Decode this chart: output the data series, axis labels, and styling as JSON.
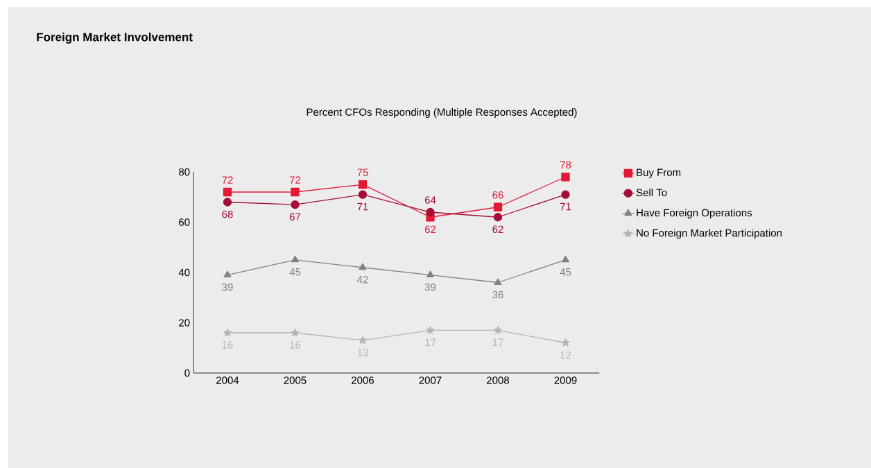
{
  "chart_data": {
    "type": "line",
    "title": "Foreign Market Involvement",
    "subtitle": "Percent CFOs Responding (Multiple Responses Accepted)",
    "categories": [
      "2004",
      "2005",
      "2006",
      "2007",
      "2008",
      "2009"
    ],
    "series": [
      {
        "name": "Buy From",
        "color": "#e31837",
        "marker": "square",
        "values": [
          72,
          72,
          75,
          62,
          66,
          78
        ]
      },
      {
        "name": "Sell To",
        "color": "#a50d34",
        "marker": "circle",
        "values": [
          68,
          67,
          71,
          64,
          62,
          71
        ]
      },
      {
        "name": "Have Foreign Operations",
        "color": "#808285",
        "marker": "triangle",
        "values": [
          39,
          45,
          42,
          39,
          36,
          45
        ]
      },
      {
        "name": "No Foreign Market Participation",
        "color": "#b5b5b7",
        "marker": "star",
        "values": [
          16,
          16,
          13,
          17,
          17,
          12
        ]
      }
    ],
    "ylim": [
      0,
      80
    ],
    "yticks": [
      0,
      20,
      40,
      60,
      80
    ],
    "data_labels": true,
    "legend": "right",
    "line_style": "solid"
  }
}
